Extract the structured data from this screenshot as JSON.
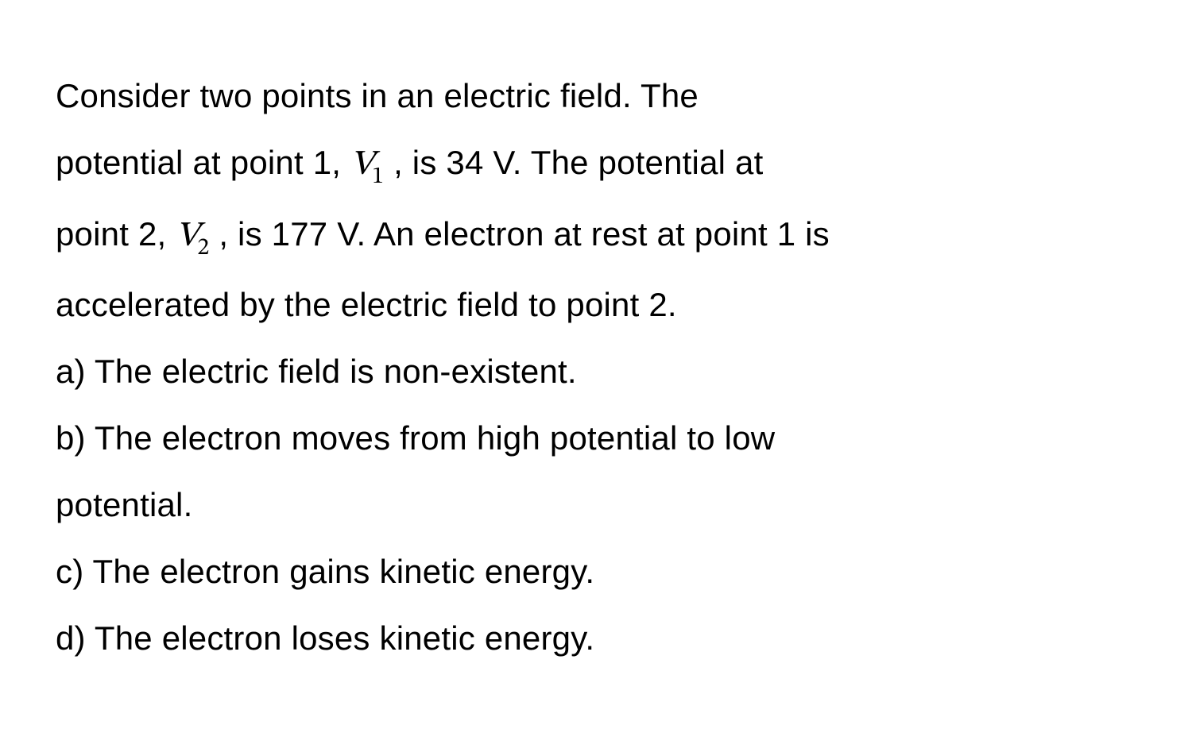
{
  "document": {
    "background_color": "#ffffff",
    "text_color": "#000000",
    "font_size_pt": 32,
    "line_height": 1.95,
    "font_family": "sans-serif",
    "math_font_family": "serif-italic",
    "text_segments": {
      "intro1": "Consider two points in an electric field. The",
      "intro2a": "potential at point 1, ",
      "v1_var": "V",
      "v1_sub": "1",
      "intro2b": " , is 34 V. The potential at",
      "intro3a": "point 2, ",
      "v2_var": "V",
      "v2_sub": "2",
      "intro3b": " , is 177 V. An electron at rest at point 1 is",
      "intro4": "accelerated by the electric field to point 2.",
      "opt_a": "a) The electric field is non-existent.",
      "opt_b1": "b) The electron moves from high potential to low",
      "opt_b2": "potential.",
      "opt_c": "c) The electron gains kinetic energy.",
      "opt_d": "d) The electron loses kinetic energy."
    },
    "values": {
      "V1_volts": 34,
      "V2_volts": 177
    }
  }
}
